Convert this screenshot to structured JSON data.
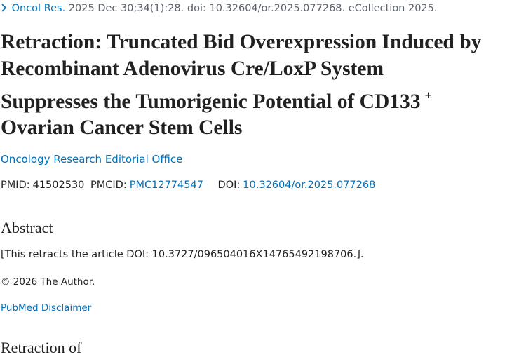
{
  "citation": {
    "journal": "Oncol Res.",
    "details": "2025 Dec 30;34(1):28. doi: 10.32604/or.2025.077268. eCollection 2025."
  },
  "title": {
    "lines": [
      "Retraction: Truncated Bid Overexpression Induced by",
      "Recombinant Adenovirus Cre/LoxP System",
      "Suppresses the Tumorigenic Potential of CD133"
    ],
    "superscript": "+",
    "last_line": "Ovarian Cancer Stem Cells"
  },
  "author": "Oncology Research Editorial Office",
  "identifiers": {
    "pmid_label": "PMID:",
    "pmid": "41502530",
    "pmcid_label": "PMCID:",
    "pmcid": "PMC12774547",
    "doi_label": "DOI:",
    "doi": "10.32604/or.2025.077268"
  },
  "abstract": {
    "heading": "Abstract",
    "text": "[This retracts the article DOI: 10.3727/096504016X14765492198706.]."
  },
  "copyright": "© 2026 The Author.",
  "disclaimer": "PubMed Disclaimer",
  "next_heading": "Retraction of"
}
